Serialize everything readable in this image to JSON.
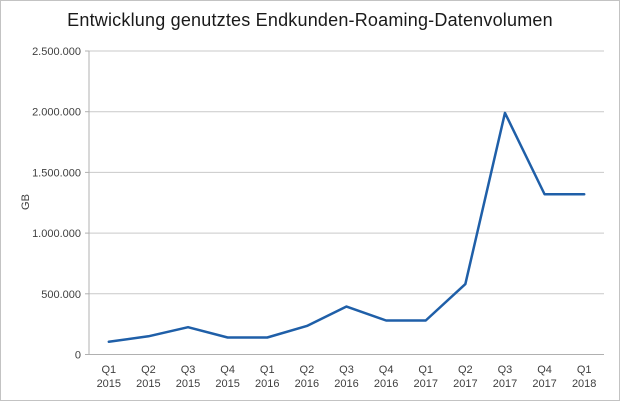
{
  "chart_data": {
    "type": "line",
    "title": "Entwicklung genutztes Endkunden-Roaming-Datenvolumen",
    "xlabel": "",
    "ylabel": "GB",
    "categories": [
      "Q1 2015",
      "Q2 2015",
      "Q3 2015",
      "Q4 2015",
      "Q1 2016",
      "Q2 2016",
      "Q3 2016",
      "Q4 2016",
      "Q1 2017",
      "Q2 2017",
      "Q3 2017",
      "Q4 2017",
      "Q1 2018"
    ],
    "values": [
      105000,
      150000,
      225000,
      140000,
      140000,
      235000,
      395000,
      280000,
      280000,
      580000,
      1990000,
      1320000,
      1320000
    ],
    "ylim": [
      0,
      2500000
    ],
    "yticks": [
      {
        "value": 0,
        "label": "0"
      },
      {
        "value": 500000,
        "label": "500.000"
      },
      {
        "value": 1000000,
        "label": "1.000.000"
      },
      {
        "value": 1500000,
        "label": "1.500.000"
      },
      {
        "value": 2000000,
        "label": "2.000.000"
      },
      {
        "value": 2500000,
        "label": "2.500.000"
      }
    ],
    "grid": true,
    "legend_position": "none",
    "colors": {
      "line": "#1f5fa8",
      "gridline": "#c9c9c9",
      "axis": "#b0b0b0",
      "tick_label": "#3f3f3f",
      "title": "#1a1a1a"
    }
  }
}
